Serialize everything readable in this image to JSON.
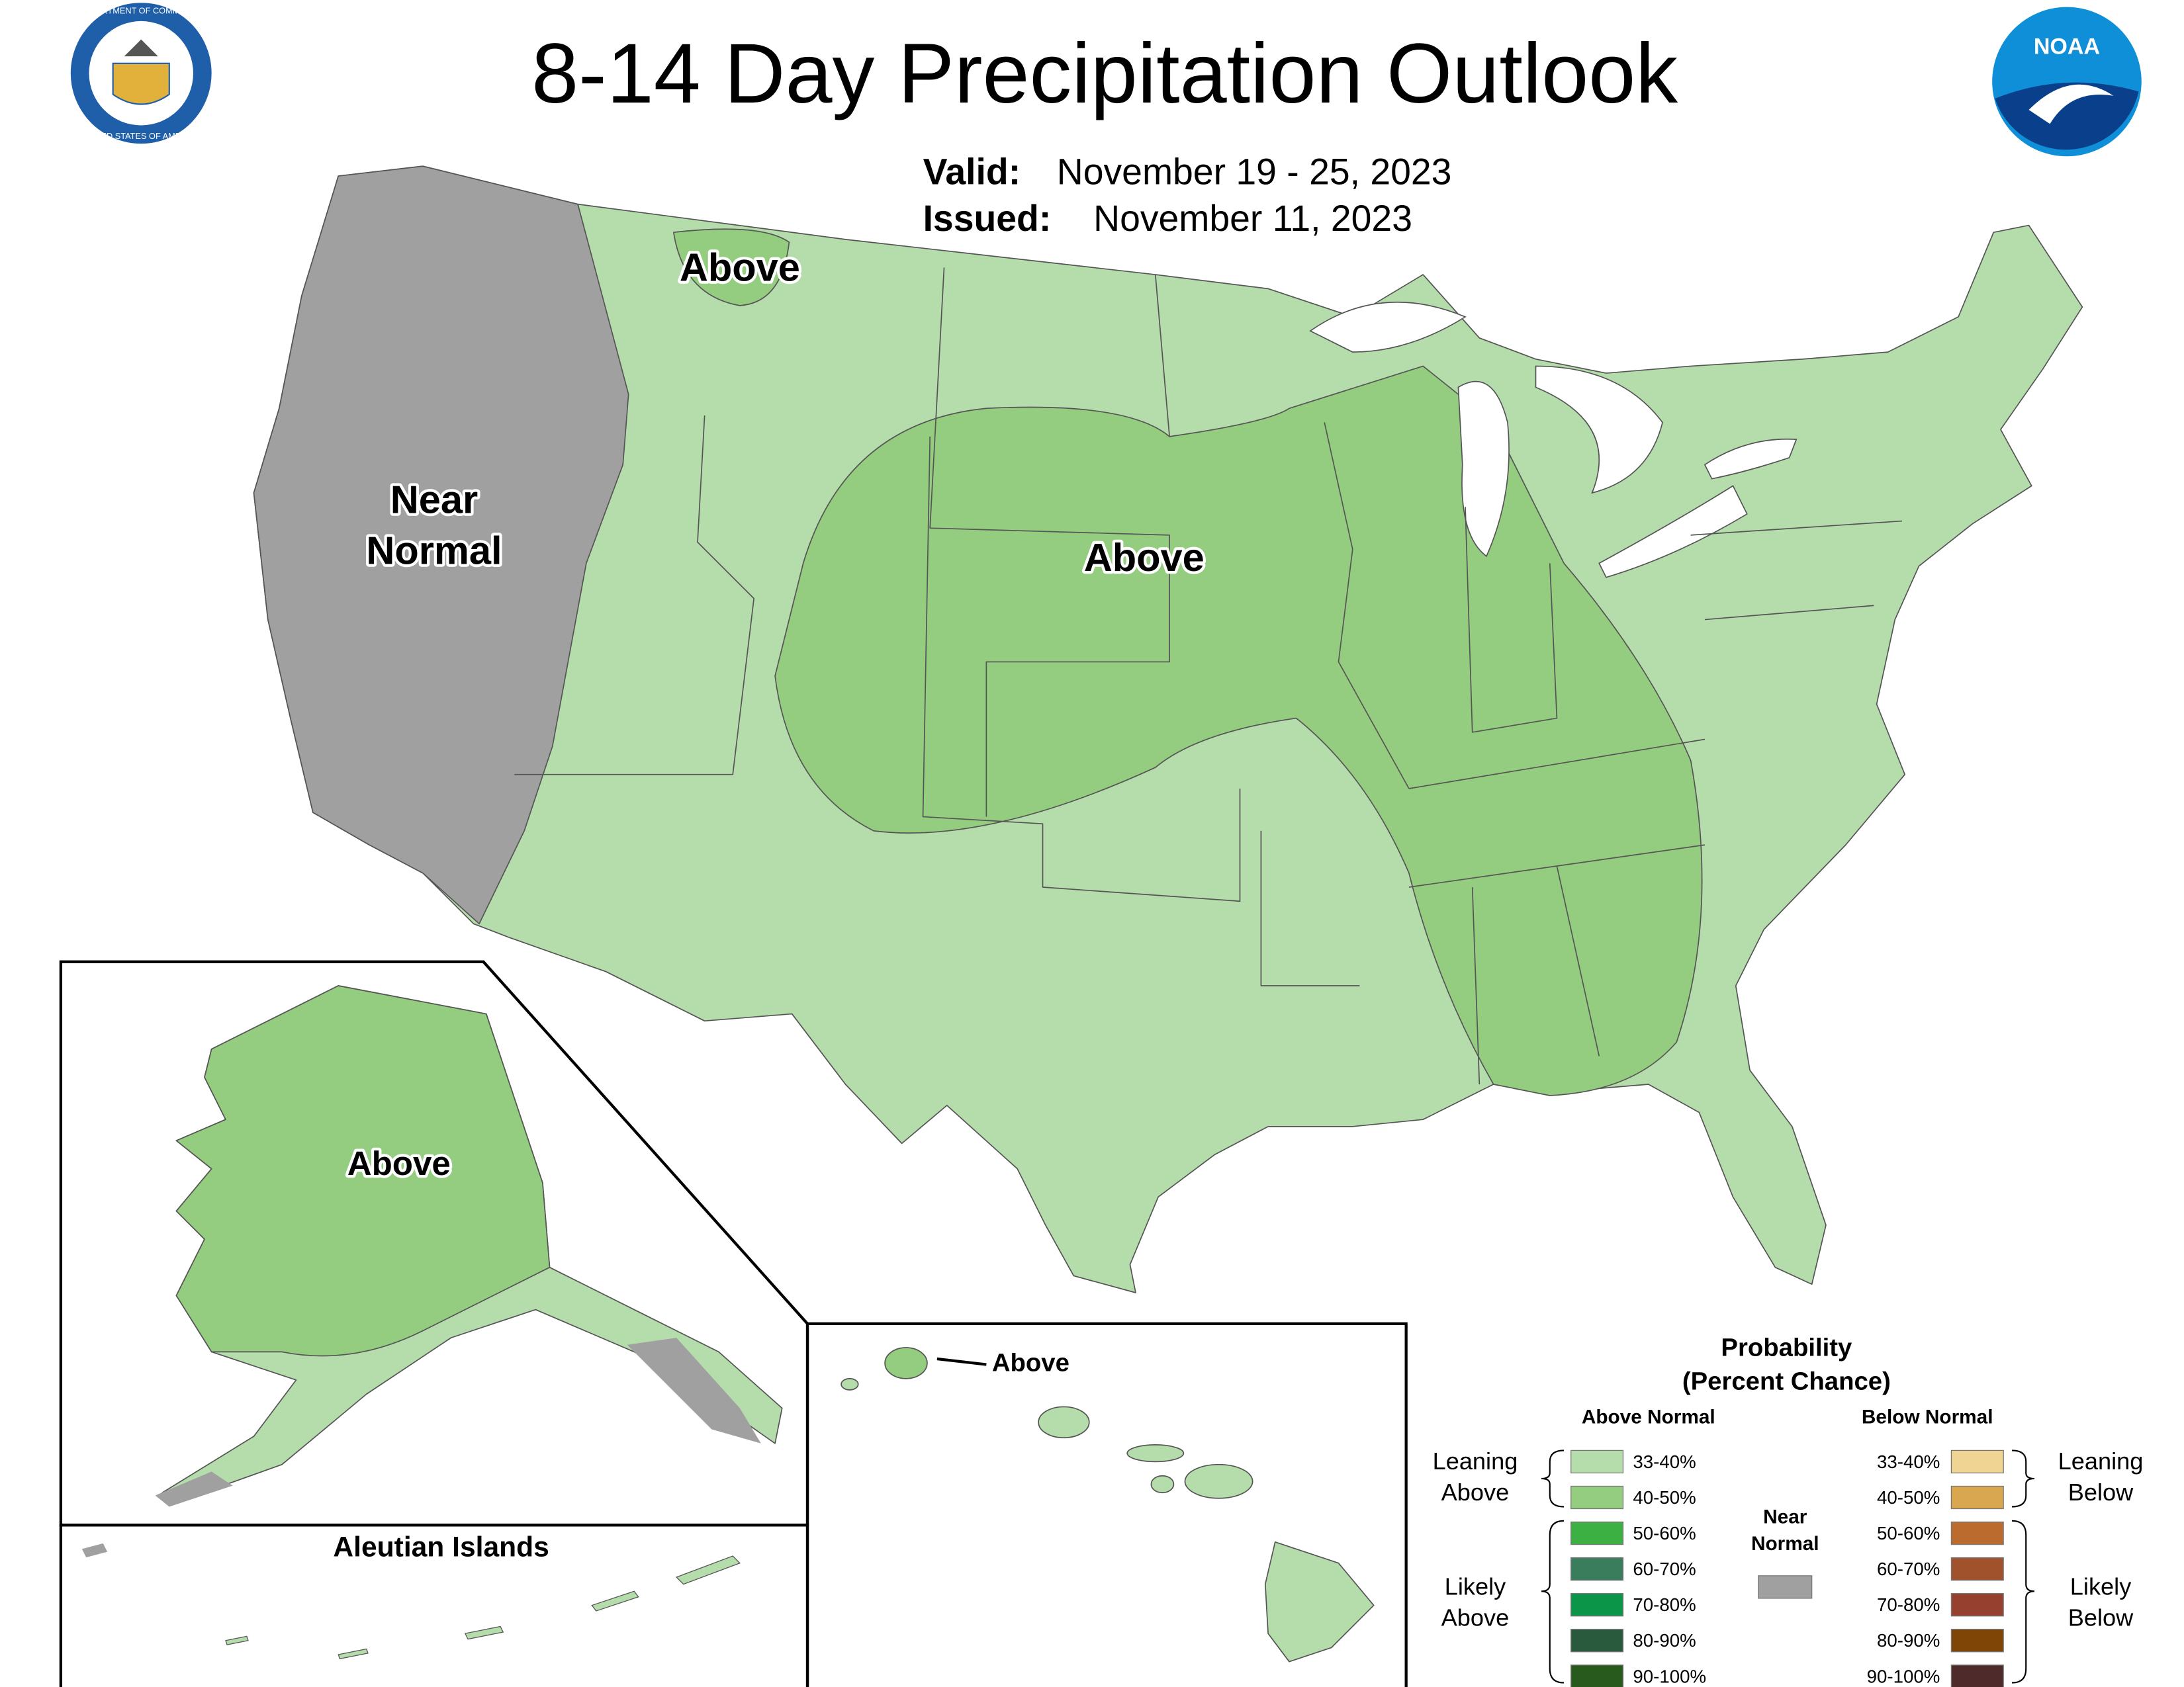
{
  "header": {
    "title": "8-14 Day Precipitation Outlook",
    "valid_label": "Valid:",
    "valid": "November 19 - 25, 2023",
    "issued_label": "Issued:",
    "issued": "November 11, 2023"
  },
  "logos": {
    "commerce_top": "DEPARTMENT OF COMMERCE",
    "commerce_bottom": "UNITED STATES OF AMERICA",
    "noaa": "NOAA"
  },
  "map": {
    "labels": [
      {
        "lines": [
          "Above"
        ]
      },
      {
        "lines": [
          "Near",
          "Normal"
        ]
      },
      {
        "lines": [
          "Above"
        ]
      }
    ]
  },
  "insets": {
    "alaska_label": "Above",
    "aleutian_title": "Aleutian Islands",
    "hawaii_label": "Above"
  },
  "legend": {
    "title": "Probability",
    "subtitle": "(Percent Chance)",
    "above_header": "Above Normal",
    "below_header": "Below Normal",
    "above": [
      {
        "label": "33-40%",
        "color": "#b5dcab"
      },
      {
        "label": "40-50%",
        "color": "#94cd7f"
      },
      {
        "label": "50-60%",
        "color": "#3cb043"
      },
      {
        "label": "60-70%",
        "color": "#3a7d5c"
      },
      {
        "label": "70-80%",
        "color": "#0a9548"
      },
      {
        "label": "80-90%",
        "color": "#2a5a3e"
      },
      {
        "label": "90-100%",
        "color": "#285a1e"
      }
    ],
    "below": [
      {
        "label": "33-40%",
        "color": "#f0d493"
      },
      {
        "label": "40-50%",
        "color": "#d8a750"
      },
      {
        "label": "50-60%",
        "color": "#bb6b2e"
      },
      {
        "label": "60-70%",
        "color": "#a0522d"
      },
      {
        "label": "70-80%",
        "color": "#964030"
      },
      {
        "label": "80-90%",
        "color": "#7f4506"
      },
      {
        "label": "90-100%",
        "color": "#4e2a2a"
      }
    ],
    "near_normal": {
      "lines": [
        "Near",
        "Normal"
      ],
      "color": "#a0a0a0"
    },
    "groups": {
      "leaning_above": [
        "Leaning",
        "Above"
      ],
      "likely_above": [
        "Likely",
        "Above"
      ],
      "leaning_below": [
        "Leaning",
        "Below"
      ],
      "likely_below": [
        "Likely",
        "Below"
      ]
    }
  }
}
